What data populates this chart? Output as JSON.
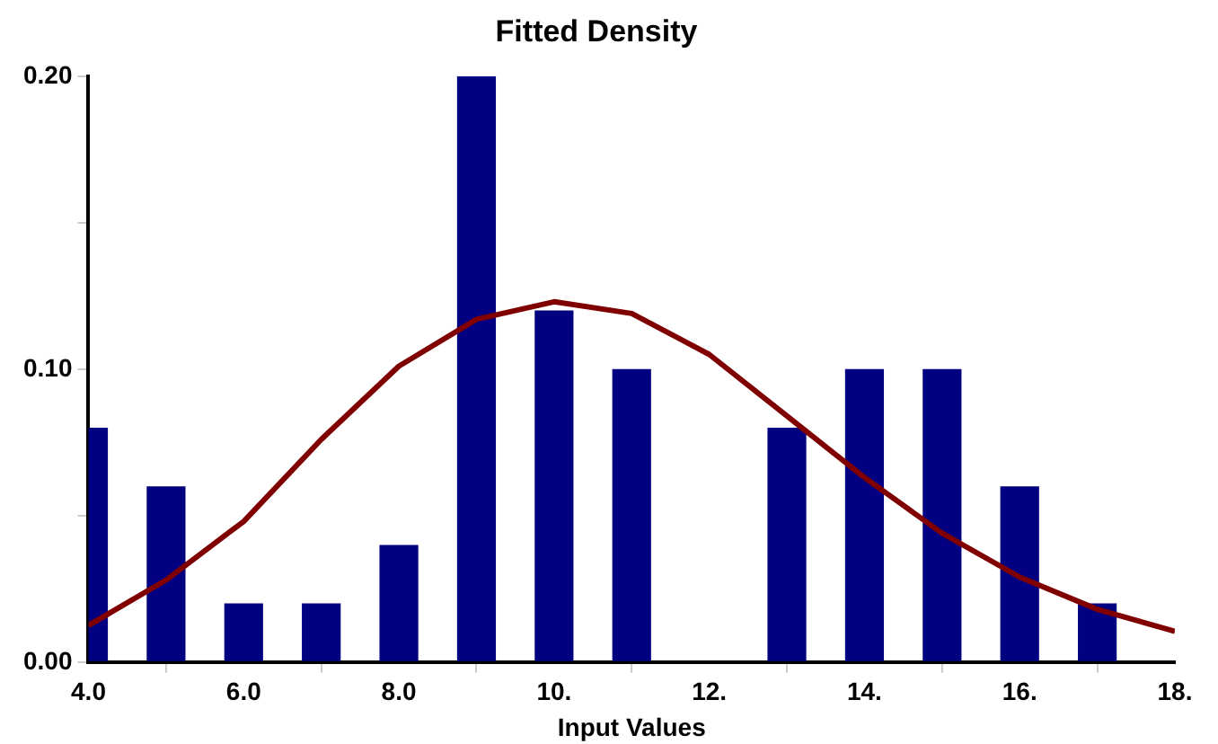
{
  "chart_data": {
    "type": "bar",
    "title": "Fitted Density",
    "xlabel": "Input Values",
    "x": [
      4,
      5,
      6,
      7,
      8,
      9,
      10,
      11,
      12,
      13,
      14,
      15,
      16,
      17
    ],
    "series": [
      {
        "color": "#000080",
        "values": [
          0.08,
          0.06,
          0.02,
          0.02,
          0.04,
          0.2,
          0.12,
          0.1,
          null,
          0.08,
          0.1,
          0.1,
          0.06,
          0.02
        ]
      },
      {
        "type": "line",
        "color": "#800000",
        "x": [
          4,
          5,
          6,
          7,
          8,
          9,
          10,
          11,
          12,
          13,
          14,
          15,
          16,
          17,
          18
        ],
        "values": [
          0.0125,
          0.028,
          0.048,
          0.076,
          0.101,
          0.117,
          0.123,
          0.119,
          0.105,
          0.084,
          0.063,
          0.044,
          0.029,
          0.018,
          0.0105
        ]
      }
    ],
    "xlim": [
      4,
      18
    ],
    "xticks": [
      {
        "value": 4,
        "label": "4.0"
      },
      {
        "value": 6,
        "label": "6.0"
      },
      {
        "value": 8,
        "label": "8.0"
      },
      {
        "value": 10,
        "label": "10."
      },
      {
        "value": 12,
        "label": "12."
      },
      {
        "value": 14,
        "label": "14."
      },
      {
        "value": 16,
        "label": "16."
      },
      {
        "value": 18,
        "label": "18."
      }
    ],
    "ylim": [
      0,
      0.2
    ],
    "yticks": [
      {
        "value": 0,
        "label": "0.00"
      },
      {
        "value": 0.05,
        "label": null
      },
      {
        "value": 0.1,
        "label": "0.10"
      },
      {
        "value": 0.15,
        "label": null
      },
      {
        "value": 0.2,
        "label": "0.20"
      }
    ],
    "grid": false,
    "legend": false,
    "marker": "none"
  }
}
